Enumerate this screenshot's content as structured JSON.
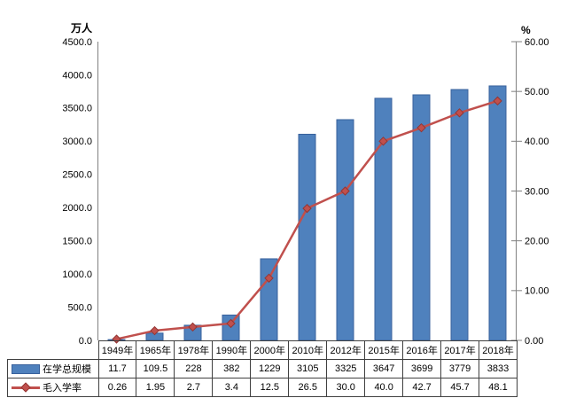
{
  "chart_data": {
    "type": "combo",
    "title": "",
    "categories": [
      "1949年",
      "1965年",
      "1978年",
      "1990年",
      "2000年",
      "2010年",
      "2012年",
      "2015年",
      "2016年",
      "2017年",
      "2018年"
    ],
    "series": [
      {
        "name": "在学总规模",
        "type": "bar",
        "axis": "left",
        "color": "#4F81BD",
        "border_color": "#38619C",
        "values": [
          "11.7",
          "109.5",
          "228",
          "382",
          "1229",
          "3105",
          "3325",
          "3647",
          "3699",
          "3779",
          "3833"
        ]
      },
      {
        "name": "毛入学率",
        "type": "line",
        "axis": "right",
        "color": "#C0504D",
        "marker": "diamond",
        "marker_border": "#943634",
        "values": [
          "0.26",
          "1.95",
          "2.7",
          "3.4",
          "12.5",
          "26.5",
          "30.0",
          "40.0",
          "42.7",
          "45.7",
          "48.1"
        ]
      }
    ],
    "left_axis": {
      "title": "万人",
      "min": 0,
      "max": 4500,
      "tick_labels": [
        "0.0",
        "500.0",
        "1000.0",
        "1500.0",
        "2000.0",
        "2500.0",
        "3000.0",
        "3500.0",
        "4000.0",
        "4500.0"
      ]
    },
    "right_axis": {
      "title": "%",
      "min": 0,
      "max": 60,
      "tick_labels": [
        "0.00",
        "10.00",
        "20.00",
        "30.00",
        "40.00",
        "50.00",
        "60.00"
      ]
    },
    "grid": false,
    "legend_position": "table-left",
    "axis_color": "#808080",
    "background": "#FFFFFF"
  }
}
